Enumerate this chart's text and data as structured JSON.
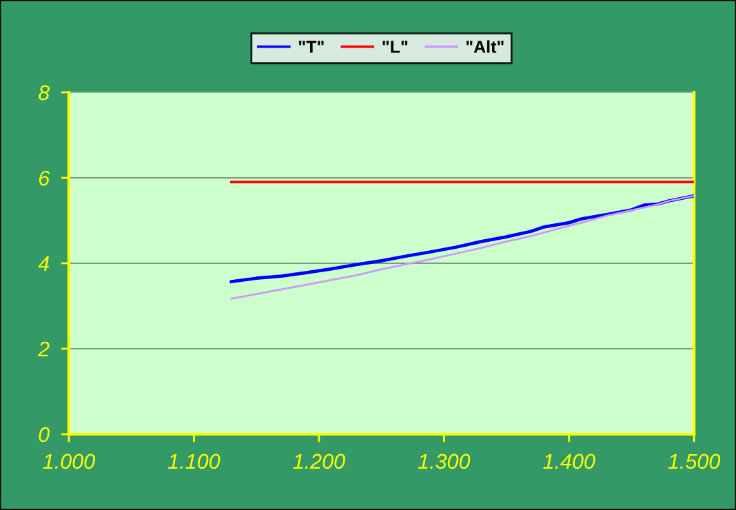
{
  "chart_data": {
    "type": "line",
    "xlim": [
      1.0,
      1.5
    ],
    "ylim": [
      0,
      8
    ],
    "xticks": [
      {
        "value": 1.0,
        "label": "1.000"
      },
      {
        "value": 1.1,
        "label": "1.100"
      },
      {
        "value": 1.2,
        "label": "1.200"
      },
      {
        "value": 1.3,
        "label": "1.300"
      },
      {
        "value": 1.4,
        "label": "1.400"
      },
      {
        "value": 1.5,
        "label": "1.500"
      }
    ],
    "yticks": [
      0,
      2,
      4,
      6,
      8
    ],
    "grid": "y",
    "legend": "top",
    "marker": "none",
    "line_style": "solid",
    "series": [
      {
        "name": "\"T\"",
        "color": "#0000ff",
        "x": [
          1.13,
          1.15,
          1.17,
          1.19,
          1.21,
          1.23,
          1.25,
          1.27,
          1.29,
          1.31,
          1.33,
          1.35,
          1.37,
          1.38,
          1.4,
          1.41,
          1.43,
          1.45,
          1.46,
          1.47,
          1.48,
          1.5
        ],
        "values": [
          3.57,
          3.65,
          3.7,
          3.78,
          3.87,
          3.97,
          4.06,
          4.17,
          4.27,
          4.38,
          4.51,
          4.62,
          4.75,
          4.85,
          4.95,
          5.04,
          5.14,
          5.25,
          5.36,
          5.38,
          5.46,
          5.58
        ]
      },
      {
        "name": "\"L\"",
        "color": "#ff0000",
        "x": [
          1.13,
          1.5
        ],
        "values": [
          5.9,
          5.9
        ]
      },
      {
        "name": "\"Alt\"",
        "color": "#cc99ff",
        "x": [
          1.13,
          1.15,
          1.17,
          1.19,
          1.21,
          1.23,
          1.25,
          1.27,
          1.29,
          1.31,
          1.33,
          1.35,
          1.37,
          1.39,
          1.41,
          1.43,
          1.45,
          1.47,
          1.48,
          1.5
        ],
        "values": [
          3.17,
          3.28,
          3.39,
          3.5,
          3.61,
          3.72,
          3.86,
          3.98,
          4.1,
          4.23,
          4.36,
          4.51,
          4.64,
          4.8,
          4.95,
          5.11,
          5.24,
          5.37,
          5.46,
          5.58
        ]
      }
    ]
  }
}
